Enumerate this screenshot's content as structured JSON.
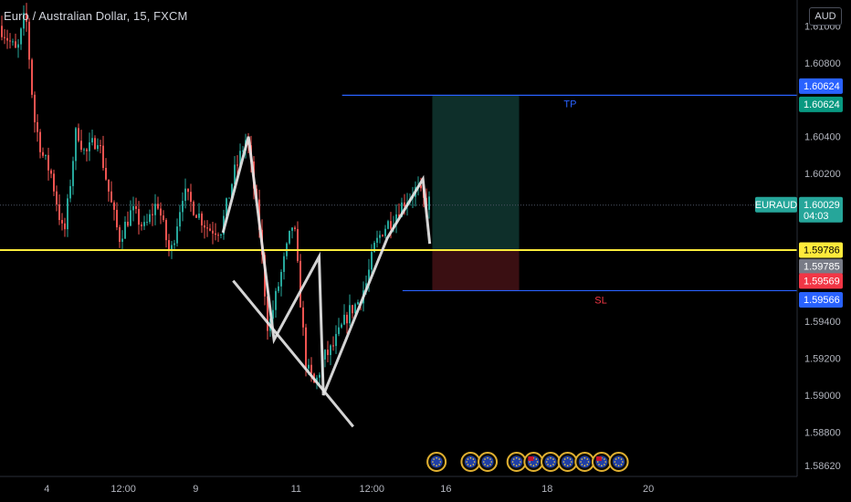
{
  "header": {
    "symbol_title": "Euro / Australian Dollar, 15, FXCM",
    "currency_button": "AUD"
  },
  "colors": {
    "background": "#000000",
    "candle_up": "#26a69a",
    "candle_down": "#ef5350",
    "support_line": "#ffeb3b",
    "tp_sl_line": "#2962ff",
    "pattern_line": "#e6e6e6",
    "profit_zone": "#0e2f2a",
    "loss_zone": "#3a0f12"
  },
  "chart_data": {
    "type": "candlestick",
    "symbol": "EURAUD",
    "interval": "15",
    "source": "FXCM",
    "y_axis": {
      "ticks": [
        "1.61000",
        "1.60800",
        "1.60400",
        "1.60200",
        "1.59400",
        "1.59200",
        "1.59000",
        "1.58800",
        "1.58620"
      ],
      "range": [
        1.5856,
        1.6114
      ]
    },
    "x_axis": {
      "labels": [
        {
          "label": "4",
          "pos": 0.055
        },
        {
          "label": "12:00",
          "pos": 0.145
        },
        {
          "label": "9",
          "pos": 0.23
        },
        {
          "label": "11",
          "pos": 0.348
        },
        {
          "label": "12:00",
          "pos": 0.437
        },
        {
          "label": "16",
          "pos": 0.524
        },
        {
          "label": "18",
          "pos": 0.643
        },
        {
          "label": "20",
          "pos": 0.762
        }
      ]
    },
    "price_path": [
      [
        0.0,
        1.61
      ],
      [
        0.02,
        1.6085
      ],
      [
        0.03,
        1.6108
      ],
      [
        0.04,
        1.605
      ],
      [
        0.05,
        1.603
      ],
      [
        0.06,
        1.602
      ],
      [
        0.075,
        1.5985
      ],
      [
        0.09,
        1.6045
      ],
      [
        0.1,
        1.603
      ],
      [
        0.115,
        1.604
      ],
      [
        0.13,
        1.6005
      ],
      [
        0.14,
        1.5985
      ],
      [
        0.155,
        1.6
      ],
      [
        0.17,
        1.599
      ],
      [
        0.185,
        1.6005
      ],
      [
        0.2,
        1.5975
      ],
      [
        0.215,
        1.601
      ],
      [
        0.23,
        1.6
      ],
      [
        0.245,
        1.599
      ],
      [
        0.26,
        1.599
      ],
      [
        0.275,
        1.602
      ],
      [
        0.29,
        1.604
      ],
      [
        0.305,
        1.599
      ],
      [
        0.315,
        1.5935
      ],
      [
        0.325,
        1.5955
      ],
      [
        0.335,
        1.5975
      ],
      [
        0.345,
        1.5995
      ],
      [
        0.355,
        1.594
      ],
      [
        0.36,
        1.5915
      ],
      [
        0.37,
        1.5905
      ],
      [
        0.38,
        1.592
      ],
      [
        0.39,
        1.5925
      ],
      [
        0.4,
        1.5935
      ],
      [
        0.41,
        1.5945
      ],
      [
        0.42,
        1.595
      ],
      [
        0.43,
        1.596
      ],
      [
        0.44,
        1.598
      ],
      [
        0.45,
        1.599
      ],
      [
        0.46,
        1.5995
      ],
      [
        0.475,
        1.6005
      ],
      [
        0.49,
        1.6012
      ],
      [
        0.5,
        1.6003
      ],
      [
        0.505,
        1.6005
      ]
    ],
    "levels": {
      "take_profit": {
        "label": "TP",
        "price": 1.60624
      },
      "stop_loss": {
        "label": "SL",
        "price": 1.59566
      },
      "support": {
        "price": 1.59786
      }
    },
    "price_tags": [
      {
        "text": "1.60624",
        "price": 1.60624,
        "bg": "#2962ff",
        "fg": "#ffffff",
        "offset": -10
      },
      {
        "text": "1.60624",
        "price": 1.60624,
        "bg": "#089981",
        "fg": "#ffffff",
        "offset": 10
      },
      {
        "text": "1.60029",
        "price": 1.60029,
        "bg": "#26a69a",
        "fg": "#ffffff",
        "offset": 0,
        "sub": "04:03",
        "name": "EURAUD"
      },
      {
        "text": "1.59786",
        "price": 1.59786,
        "bg": "#ffeb3b",
        "fg": "#000000",
        "offset": 0
      },
      {
        "text": "1.59785",
        "price": 1.59785,
        "bg": "#787b86",
        "fg": "#ffffff",
        "offset": 18
      },
      {
        "text": "1.59569",
        "price": 1.59569,
        "bg": "#f23645",
        "fg": "#ffffff",
        "offset": -10
      },
      {
        "text": "1.59566",
        "price": 1.59566,
        "bg": "#2962ff",
        "fg": "#ffffff",
        "offset": 10
      }
    ],
    "position_box": {
      "x_start": 0.508,
      "x_end": 0.61,
      "entry": 1.59786,
      "target": 1.60624,
      "stop": 1.59566
    },
    "drawings": {
      "zigzag": [
        [
          0.262,
          1.5988
        ],
        [
          0.292,
          1.604
        ],
        [
          0.322,
          1.593
        ],
        [
          0.375,
          1.5975
        ],
        [
          0.38,
          1.59
        ],
        [
          0.455,
          1.5985
        ],
        [
          0.497,
          1.6017
        ],
        [
          0.505,
          1.5982
        ]
      ],
      "trendline": [
        [
          0.274,
          1.5962
        ],
        [
          0.415,
          1.5883
        ]
      ]
    },
    "event_markers": {
      "x_positions": [
        0.513,
        0.553,
        0.573,
        0.607,
        0.627,
        0.647,
        0.667,
        0.687,
        0.707,
        0.727
      ],
      "flagged_indices": [
        4,
        8
      ]
    }
  }
}
